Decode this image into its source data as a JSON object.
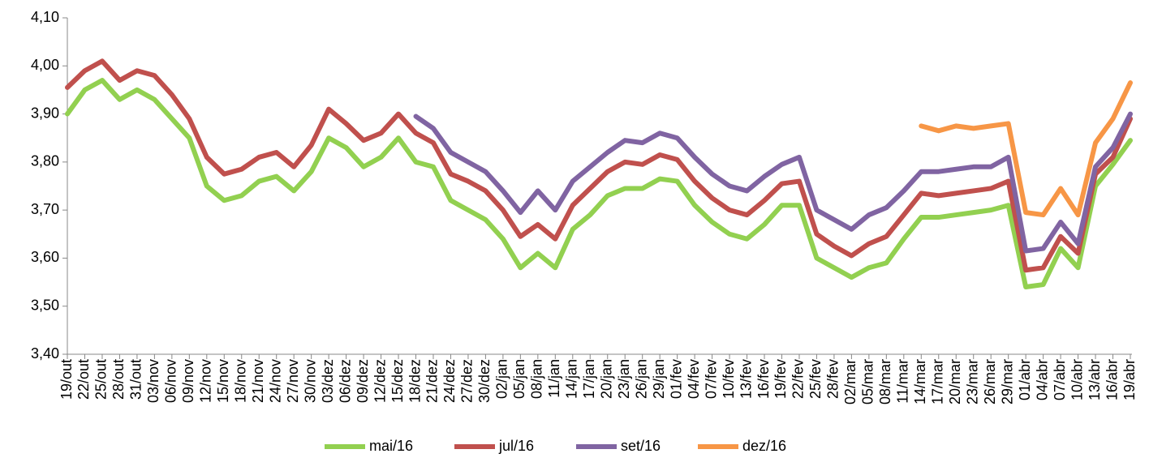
{
  "chart_data": {
    "type": "line",
    "categories": [
      "19/out",
      "22/out",
      "25/out",
      "28/out",
      "31/out",
      "03/nov",
      "06/nov",
      "09/nov",
      "12/nov",
      "15/nov",
      "18/nov",
      "21/nov",
      "24/nov",
      "27/nov",
      "30/nov",
      "03/dez",
      "06/dez",
      "09/dez",
      "12/dez",
      "15/dez",
      "18/dez",
      "21/dez",
      "24/dez",
      "27/dez",
      "30/dez",
      "02/jan",
      "05/jan",
      "08/jan",
      "11/jan",
      "14/jan",
      "17/jan",
      "20/jan",
      "23/jan",
      "26/jan",
      "29/jan",
      "01/fev",
      "04/fev",
      "07/fev",
      "10/fev",
      "13/fev",
      "16/fev",
      "19/fev",
      "22/fev",
      "25/fev",
      "28/fev",
      "02/mar",
      "05/mar",
      "08/mar",
      "11/mar",
      "14/mar",
      "17/mar",
      "20/mar",
      "23/mar",
      "26/mar",
      "29/mar",
      "01/abr",
      "04/abr",
      "07/abr",
      "10/abr",
      "13/abr",
      "16/abr",
      "19/abr"
    ],
    "series": [
      {
        "name": "mai/16",
        "color": "#92d050",
        "values": [
          3.9,
          3.95,
          3.97,
          3.93,
          3.95,
          3.93,
          3.89,
          3.85,
          3.75,
          3.72,
          3.73,
          3.76,
          3.77,
          3.74,
          3.78,
          3.85,
          3.83,
          3.79,
          3.81,
          3.85,
          3.8,
          3.79,
          3.72,
          3.7,
          3.68,
          3.64,
          3.58,
          3.61,
          3.58,
          3.66,
          3.69,
          3.73,
          3.745,
          3.745,
          3.765,
          3.76,
          3.71,
          3.675,
          3.65,
          3.64,
          3.67,
          3.71,
          3.71,
          3.6,
          3.58,
          3.56,
          3.58,
          3.59,
          3.64,
          3.685,
          3.685,
          3.69,
          3.695,
          3.7,
          3.71,
          3.54,
          3.545,
          3.62,
          3.58,
          3.75,
          3.795,
          3.845
        ]
      },
      {
        "name": "jul/16",
        "color": "#c0504d",
        "values": [
          3.955,
          3.99,
          4.01,
          3.97,
          3.99,
          3.98,
          3.94,
          3.89,
          3.81,
          3.775,
          3.785,
          3.81,
          3.82,
          3.79,
          3.835,
          3.91,
          3.88,
          3.845,
          3.86,
          3.9,
          3.86,
          3.84,
          3.775,
          3.76,
          3.74,
          3.7,
          3.645,
          3.67,
          3.64,
          3.71,
          3.745,
          3.78,
          3.8,
          3.795,
          3.815,
          3.805,
          3.76,
          3.725,
          3.7,
          3.69,
          3.72,
          3.755,
          3.76,
          3.65,
          3.625,
          3.605,
          3.63,
          3.645,
          3.69,
          3.735,
          3.73,
          3.735,
          3.74,
          3.745,
          3.76,
          3.575,
          3.58,
          3.645,
          3.61,
          3.775,
          3.81,
          3.89
        ]
      },
      {
        "name": "set/16",
        "color": "#8064a2",
        "values": [
          null,
          null,
          null,
          null,
          null,
          null,
          null,
          null,
          null,
          null,
          null,
          null,
          null,
          null,
          null,
          null,
          null,
          null,
          null,
          null,
          3.895,
          3.87,
          3.82,
          3.8,
          3.78,
          3.74,
          3.695,
          3.74,
          3.7,
          3.76,
          3.79,
          3.82,
          3.845,
          3.84,
          3.86,
          3.85,
          3.81,
          3.775,
          3.75,
          3.74,
          3.77,
          3.795,
          3.81,
          3.7,
          3.68,
          3.66,
          3.69,
          3.705,
          3.74,
          3.78,
          3.78,
          3.785,
          3.79,
          3.79,
          3.81,
          3.615,
          3.62,
          3.675,
          3.63,
          3.79,
          3.83,
          3.9
        ]
      },
      {
        "name": "dez/16",
        "color": "#f79646",
        "values": [
          null,
          null,
          null,
          null,
          null,
          null,
          null,
          null,
          null,
          null,
          null,
          null,
          null,
          null,
          null,
          null,
          null,
          null,
          null,
          null,
          null,
          null,
          null,
          null,
          null,
          null,
          null,
          null,
          null,
          null,
          null,
          null,
          null,
          null,
          null,
          null,
          null,
          null,
          null,
          null,
          null,
          null,
          null,
          null,
          null,
          null,
          null,
          null,
          null,
          3.875,
          3.865,
          3.875,
          3.87,
          3.875,
          3.88,
          3.695,
          3.69,
          3.745,
          3.69,
          3.84,
          3.89,
          3.965
        ]
      }
    ],
    "ylim": [
      3.4,
      4.1
    ],
    "yticks": [
      {
        "value": 3.4,
        "label": "3,40"
      },
      {
        "value": 3.5,
        "label": "3,50"
      },
      {
        "value": 3.6,
        "label": "3,60"
      },
      {
        "value": 3.7,
        "label": "3,70"
      },
      {
        "value": 3.8,
        "label": "3,80"
      },
      {
        "value": 3.9,
        "label": "3,90"
      },
      {
        "value": 4.0,
        "label": "4,00"
      },
      {
        "value": 4.1,
        "label": "4,10"
      }
    ],
    "grid": false,
    "legend": "bottom"
  }
}
